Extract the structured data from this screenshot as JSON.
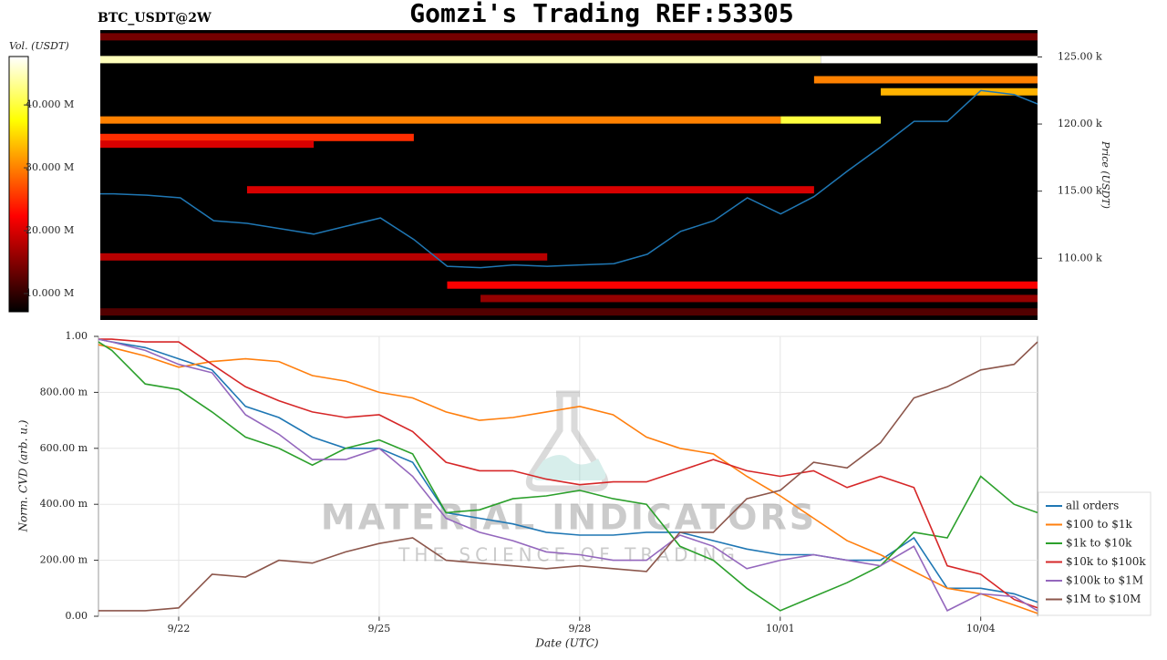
{
  "chart_data": [
    {
      "type": "heatmap",
      "title": "Gomzi's Trading REF:53305",
      "subtitle": "BTC_USDT@2W",
      "ylabel": "Price (USDT)",
      "x": [
        20.8,
        21,
        21.5,
        22,
        22.5,
        23,
        23.5,
        24,
        24.5,
        25,
        25.5,
        26,
        26.5,
        27,
        27.5,
        28,
        28.5,
        29,
        29.5,
        30,
        30.5,
        31,
        31.5,
        32,
        32.5,
        33,
        33.5,
        34,
        34.5,
        34.85
      ],
      "xlim": [
        20.8,
        34.85
      ],
      "ylim": [
        105.4,
        127
      ],
      "yticks": [
        {
          "value": 110,
          "label": "110.00 k"
        },
        {
          "value": 115,
          "label": "115.00 k"
        },
        {
          "value": 120,
          "label": "120.00 k"
        },
        {
          "value": 125,
          "label": "125.00 k"
        }
      ],
      "price_line": {
        "color": "#1f77b4",
        "values": [
          114.8,
          114.8,
          114.7,
          114.5,
          112.8,
          112.6,
          112.2,
          111.8,
          112.4,
          113.0,
          111.4,
          109.4,
          109.3,
          109.5,
          109.4,
          109.5,
          109.6,
          110.3,
          112.0,
          112.8,
          114.5,
          113.3,
          114.6,
          116.5,
          118.3,
          120.2,
          120.2,
          122.5,
          122.2,
          121.5
        ]
      },
      "bands": {
        "prices": [
          124.8,
          124.8,
          120.3,
          120.3,
          119.0,
          118.5,
          115.1,
          110.1,
          108.0,
          123.3,
          122.4,
          126.5,
          107.0,
          106.0
        ],
        "starts": [
          20.8,
          31.6,
          20.8,
          31.0,
          20.8,
          20.8,
          23.0,
          20.8,
          26.0,
          31.5,
          32.5,
          20.8,
          26.5,
          20.8
        ],
        "ends": [
          31.6,
          34.85,
          31.0,
          32.5,
          25.5,
          24.0,
          31.5,
          27.5,
          34.85,
          34.85,
          34.85,
          34.85,
          34.85,
          34.85
        ],
        "volumes": [
          45,
          47.5,
          30,
          40,
          25,
          20,
          20,
          18,
          22,
          30,
          33,
          14,
          16,
          12
        ]
      },
      "colorbar": {
        "label": "Vol. (USDT)",
        "colormap": "hot",
        "lim": [
          7.1,
          47.7
        ],
        "ticks": [
          {
            "value": 10,
            "label": "10.000 M"
          },
          {
            "value": 20,
            "label": "20.000 M"
          },
          {
            "value": 30,
            "label": "30.000 M"
          },
          {
            "value": 40,
            "label": "40.000 M"
          }
        ]
      }
    },
    {
      "type": "line",
      "xlabel": "Date (UTC)",
      "ylabel": "Norm. CVD (arb. u.)",
      "grid": true,
      "legend": "right",
      "x": [
        20.8,
        21,
        21.5,
        22,
        22.5,
        23,
        23.5,
        24,
        24.5,
        25,
        25.5,
        26,
        26.5,
        27,
        27.5,
        28,
        28.5,
        29,
        29.5,
        30,
        30.5,
        31,
        31.5,
        32,
        32.5,
        33,
        33.5,
        34,
        34.5,
        34.85
      ],
      "xlim": [
        20.8,
        34.85
      ],
      "xticks": [
        {
          "value": 22,
          "label": "9/22"
        },
        {
          "value": 25,
          "label": "9/25"
        },
        {
          "value": 28,
          "label": "9/28"
        },
        {
          "value": 31,
          "label": "10/01"
        },
        {
          "value": 34,
          "label": "10/04"
        }
      ],
      "ylim": [
        0,
        1
      ],
      "yticks": [
        {
          "value": 0,
          "label": "0.00"
        },
        {
          "value": 0.2,
          "label": "200.00 m"
        },
        {
          "value": 0.4,
          "label": "400.00 m"
        },
        {
          "value": 0.6,
          "label": "600.00 m"
        },
        {
          "value": 0.8,
          "label": "800.00 m"
        },
        {
          "value": 1,
          "label": "1.00"
        }
      ],
      "series": [
        {
          "name": "all orders",
          "color": "#1f77b4",
          "values": [
            0.99,
            0.98,
            0.96,
            0.92,
            0.88,
            0.75,
            0.71,
            0.64,
            0.6,
            0.6,
            0.55,
            0.37,
            0.35,
            0.33,
            0.3,
            0.29,
            0.29,
            0.3,
            0.3,
            0.27,
            0.24,
            0.22,
            0.22,
            0.2,
            0.2,
            0.28,
            0.1,
            0.1,
            0.08,
            0.05
          ]
        },
        {
          "name": "$100 to $1k",
          "color": "#ff7f0e",
          "values": [
            0.97,
            0.96,
            0.93,
            0.89,
            0.91,
            0.92,
            0.91,
            0.86,
            0.84,
            0.8,
            0.78,
            0.73,
            0.7,
            0.71,
            0.73,
            0.75,
            0.72,
            0.64,
            0.6,
            0.58,
            0.5,
            0.43,
            0.35,
            0.27,
            0.22,
            0.16,
            0.1,
            0.08,
            0.04,
            0.01
          ]
        },
        {
          "name": "$1k to $10k",
          "color": "#2ca02c",
          "values": [
            0.98,
            0.95,
            0.83,
            0.81,
            0.73,
            0.64,
            0.6,
            0.54,
            0.6,
            0.63,
            0.58,
            0.37,
            0.38,
            0.42,
            0.43,
            0.45,
            0.42,
            0.4,
            0.25,
            0.2,
            0.1,
            0.02,
            0.07,
            0.12,
            0.18,
            0.3,
            0.28,
            0.5,
            0.4,
            0.37
          ]
        },
        {
          "name": "$10k to $100k",
          "color": "#d62728",
          "values": [
            0.99,
            0.99,
            0.98,
            0.98,
            0.9,
            0.82,
            0.77,
            0.73,
            0.71,
            0.72,
            0.66,
            0.55,
            0.52,
            0.52,
            0.49,
            0.47,
            0.48,
            0.48,
            0.52,
            0.56,
            0.52,
            0.5,
            0.52,
            0.46,
            0.5,
            0.46,
            0.18,
            0.15,
            0.06,
            0.03
          ]
        },
        {
          "name": "$100k to $1M",
          "color": "#9467bd",
          "values": [
            0.99,
            0.98,
            0.95,
            0.9,
            0.87,
            0.72,
            0.65,
            0.56,
            0.56,
            0.6,
            0.5,
            0.35,
            0.3,
            0.27,
            0.23,
            0.22,
            0.2,
            0.2,
            0.29,
            0.25,
            0.17,
            0.2,
            0.22,
            0.2,
            0.18,
            0.25,
            0.02,
            0.08,
            0.07,
            0.02
          ]
        },
        {
          "name": "$1M to $10M",
          "color": "#8c564b",
          "values": [
            0.02,
            0.02,
            0.02,
            0.03,
            0.15,
            0.14,
            0.2,
            0.19,
            0.23,
            0.26,
            0.28,
            0.2,
            0.19,
            0.18,
            0.17,
            0.18,
            0.17,
            0.16,
            0.3,
            0.3,
            0.42,
            0.45,
            0.55,
            0.53,
            0.62,
            0.78,
            0.82,
            0.88,
            0.9,
            0.98
          ]
        }
      ]
    }
  ],
  "watermark": {
    "title": "MATERIAL INDICATORS",
    "subtitle": "THE SCIENCE OF TRADING"
  }
}
